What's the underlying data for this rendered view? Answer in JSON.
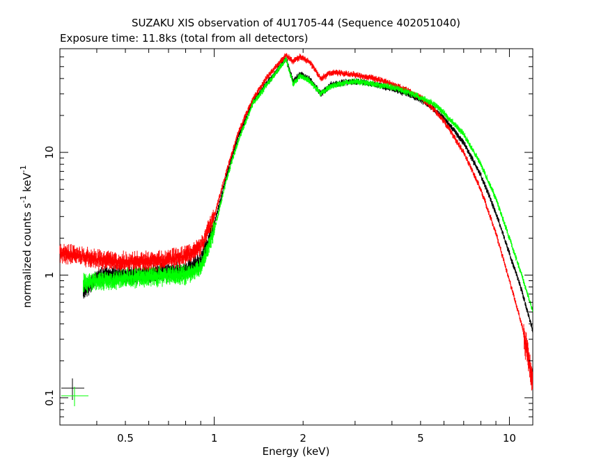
{
  "chart_data": {
    "type": "scatter",
    "title": "SUZAKU XIS observation of 4U1705-44 (Sequence 402051040)",
    "subtitle": "Exposure time: 11.8ks (total from all detectors)",
    "xlabel": "Energy (keV)",
    "ylabel_main": "normalized counts s",
    "ylabel_sup1": "-1",
    "ylabel_mid": " keV",
    "ylabel_sup2": "-1",
    "x_scale": "log",
    "y_scale": "log",
    "xlim": [
      0.3,
      12
    ],
    "ylim": [
      0.06,
      70
    ],
    "x_ticks": [
      {
        "value": 0.5,
        "label": "0.5"
      },
      {
        "value": 1,
        "label": "1"
      },
      {
        "value": 2,
        "label": "2"
      },
      {
        "value": 5,
        "label": "5"
      },
      {
        "value": 10,
        "label": "10"
      }
    ],
    "y_ticks": [
      {
        "value": 0.1,
        "label": "0.1"
      },
      {
        "value": 1,
        "label": "1"
      },
      {
        "value": 10,
        "label": "10"
      }
    ],
    "grid": false,
    "legend": "none",
    "series": [
      {
        "color": "#000000",
        "x": [
          0.36,
          0.4,
          0.45,
          0.5,
          0.55,
          0.6,
          0.7,
          0.8,
          0.9,
          1.0,
          1.1,
          1.2,
          1.35,
          1.5,
          1.6,
          1.75,
          1.85,
          1.95,
          2.1,
          2.3,
          2.5,
          3.0,
          3.5,
          4.0,
          4.5,
          5.0,
          5.5,
          6.0,
          7.0,
          8.0,
          9.0,
          10.0,
          11.0,
          12.0
        ],
        "y": [
          0.75,
          0.95,
          1.0,
          1.0,
          1.0,
          1.05,
          1.05,
          1.1,
          1.3,
          2.6,
          6.5,
          13,
          26,
          36,
          44,
          58,
          38,
          43,
          40,
          30,
          36,
          38,
          36,
          33,
          30,
          27,
          23,
          19,
          12,
          6.5,
          3.2,
          1.5,
          0.75,
          0.35
        ]
      },
      {
        "color": "#ff0000",
        "x": [
          0.3,
          0.35,
          0.4,
          0.45,
          0.5,
          0.55,
          0.6,
          0.7,
          0.8,
          0.9,
          1.0,
          1.1,
          1.2,
          1.35,
          1.5,
          1.6,
          1.75,
          1.85,
          1.95,
          2.1,
          2.3,
          2.5,
          3.0,
          3.5,
          4.0,
          4.5,
          5.0,
          5.5,
          6.0,
          7.0,
          8.0,
          9.0,
          10.0,
          11.0,
          12.0
        ],
        "y": [
          1.5,
          1.45,
          1.35,
          1.3,
          1.3,
          1.3,
          1.3,
          1.35,
          1.45,
          1.7,
          3.0,
          7.0,
          14,
          27,
          40,
          48,
          62,
          55,
          60,
          55,
          40,
          45,
          43,
          40,
          36,
          32,
          28,
          23,
          18,
          10,
          5.0,
          2.2,
          0.9,
          0.4,
          0.13
        ]
      },
      {
        "color": "#00ff00",
        "x": [
          0.36,
          0.4,
          0.45,
          0.5,
          0.55,
          0.6,
          0.7,
          0.8,
          0.9,
          1.0,
          1.1,
          1.2,
          1.35,
          1.5,
          1.6,
          1.75,
          1.85,
          1.95,
          2.1,
          2.3,
          2.5,
          3.0,
          3.5,
          4.0,
          4.5,
          5.0,
          5.5,
          6.0,
          7.0,
          8.0,
          9.0,
          10.0,
          11.0,
          12.0
        ],
        "y": [
          0.85,
          0.9,
          0.9,
          0.95,
          0.95,
          0.95,
          1.0,
          1.0,
          1.15,
          2.3,
          6.0,
          12,
          25,
          35,
          43,
          58,
          36,
          42,
          38,
          30,
          35,
          38,
          36,
          34,
          31,
          28,
          25,
          21,
          14,
          8.0,
          4.2,
          2.0,
          1.0,
          0.5
        ]
      }
    ],
    "colors": {
      "axis": "#000000",
      "background": "#ffffff"
    }
  }
}
